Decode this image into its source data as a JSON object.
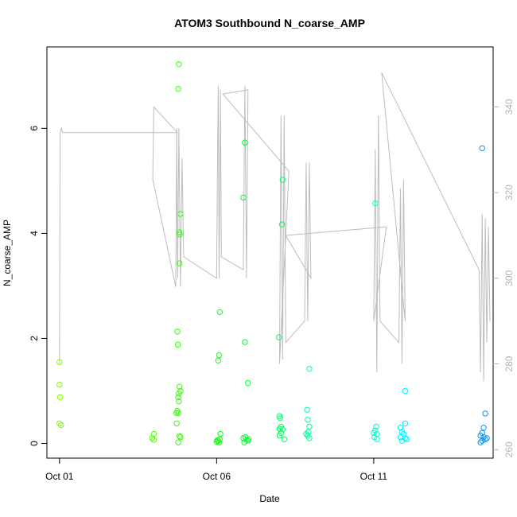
{
  "chart_data": {
    "type": "scatter",
    "title": "ATOM3 Southbound N_coarse_AMP",
    "xlabel": "Date",
    "ylabel": "N_coarse_AMP",
    "xlim": [
      -0.4,
      13.8
    ],
    "ylim": [
      -0.28,
      7.55
    ],
    "x_ticks": [
      {
        "label": "Oct 01",
        "value": 0
      },
      {
        "label": "Oct 06",
        "value": 5
      },
      {
        "label": "Oct 11",
        "value": 10
      }
    ],
    "y_ticks": [
      0,
      2,
      4,
      6
    ],
    "y2_lim": [
      258,
      354
    ],
    "y2_ticks": [
      260,
      280,
      300,
      320,
      340
    ],
    "grid": false,
    "line_color": "#bdbdbd",
    "series": [
      {
        "values": [
          [
            0.0,
            1.55,
            "#7fff00"
          ],
          [
            0.0,
            1.12,
            "#7fff00"
          ],
          [
            0.02,
            0.88,
            "#7fff00"
          ],
          [
            0.0,
            0.38,
            "#7fff00"
          ],
          [
            0.05,
            0.35,
            "#7fff00"
          ],
          [
            3.0,
            0.18,
            "#55ff00"
          ],
          [
            2.95,
            0.1,
            "#55ff00"
          ],
          [
            3.0,
            0.07,
            "#55ff00"
          ],
          [
            3.8,
            7.22,
            "#33ff00"
          ],
          [
            3.78,
            6.75,
            "#33ff00"
          ],
          [
            3.85,
            4.37,
            "#33ff00"
          ],
          [
            3.82,
            4.02,
            "#33ff00"
          ],
          [
            3.83,
            3.98,
            "#33ff00"
          ],
          [
            3.82,
            3.43,
            "#33ff00"
          ],
          [
            3.75,
            2.13,
            "#33ff00"
          ],
          [
            3.77,
            1.88,
            "#33ff00"
          ],
          [
            3.82,
            1.08,
            "#33ff00"
          ],
          [
            3.85,
            1.0,
            "#33ff00"
          ],
          [
            3.8,
            0.95,
            "#33ff00"
          ],
          [
            3.78,
            0.88,
            "#33ff00"
          ],
          [
            3.8,
            0.8,
            "#33ff00"
          ],
          [
            3.75,
            0.62,
            "#33ff00"
          ],
          [
            3.72,
            0.58,
            "#33ff00"
          ],
          [
            3.78,
            0.58,
            "#33ff00"
          ],
          [
            3.73,
            0.38,
            "#33ff00"
          ],
          [
            3.82,
            0.14,
            "#33ff00"
          ],
          [
            3.85,
            0.12,
            "#33ff00"
          ],
          [
            3.78,
            0.02,
            "#33ff00"
          ],
          [
            5.1,
            2.5,
            "#11ff11"
          ],
          [
            5.08,
            1.68,
            "#11ff11"
          ],
          [
            5.05,
            1.58,
            "#11ff11"
          ],
          [
            5.12,
            0.18,
            "#11ff11"
          ],
          [
            5.1,
            0.08,
            "#11ff11"
          ],
          [
            5.05,
            0.05,
            "#11ff11"
          ],
          [
            5.0,
            0.03,
            "#11ff11"
          ],
          [
            5.08,
            0.02,
            "#11ff11"
          ],
          [
            5.02,
            0.06,
            "#11ff11"
          ],
          [
            5.9,
            5.73,
            "#00ff30"
          ],
          [
            5.85,
            4.68,
            "#00ff30"
          ],
          [
            5.9,
            1.93,
            "#00ff30"
          ],
          [
            6.0,
            1.15,
            "#00ff30"
          ],
          [
            5.85,
            0.1,
            "#00ff30"
          ],
          [
            5.95,
            0.07,
            "#00ff30"
          ],
          [
            6.0,
            0.05,
            "#00ff30"
          ],
          [
            5.88,
            0.02,
            "#00ff30"
          ],
          [
            5.92,
            0.12,
            "#00ff30"
          ],
          [
            6.02,
            0.08,
            "#00ff30"
          ],
          [
            7.1,
            5.02,
            "#00ff66"
          ],
          [
            7.08,
            4.17,
            "#00ff66"
          ],
          [
            6.98,
            2.02,
            "#00ff66"
          ],
          [
            7.0,
            0.52,
            "#00ff66"
          ],
          [
            7.02,
            0.48,
            "#00ff66"
          ],
          [
            7.05,
            0.32,
            "#00ff66"
          ],
          [
            7.0,
            0.28,
            "#00ff66"
          ],
          [
            7.1,
            0.27,
            "#00ff66"
          ],
          [
            7.05,
            0.2,
            "#00ff66"
          ],
          [
            7.0,
            0.15,
            "#00ff66"
          ],
          [
            7.15,
            0.08,
            "#00ff66"
          ],
          [
            7.95,
            1.42,
            "#00ff99"
          ],
          [
            7.88,
            0.64,
            "#00ff99"
          ],
          [
            7.9,
            0.45,
            "#00ff99"
          ],
          [
            7.95,
            0.32,
            "#00ff99"
          ],
          [
            7.92,
            0.22,
            "#00ff99"
          ],
          [
            7.85,
            0.18,
            "#00ff99"
          ],
          [
            7.9,
            0.15,
            "#00ff99"
          ],
          [
            7.95,
            0.1,
            "#00ff99"
          ],
          [
            10.05,
            4.57,
            "#00ffcc"
          ],
          [
            10.08,
            0.32,
            "#00ffcc"
          ],
          [
            10.05,
            0.25,
            "#00ffcc"
          ],
          [
            10.0,
            0.2,
            "#00ffcc"
          ],
          [
            10.1,
            0.18,
            "#00ffcc"
          ],
          [
            10.02,
            0.12,
            "#00ffcc"
          ],
          [
            10.1,
            0.08,
            "#00ffcc"
          ],
          [
            11.0,
            1.0,
            "#00eeff"
          ],
          [
            10.85,
            0.3,
            "#00eeff"
          ],
          [
            11.0,
            0.38,
            "#00eeff"
          ],
          [
            10.9,
            0.22,
            "#00eeff"
          ],
          [
            10.95,
            0.18,
            "#00eeff"
          ],
          [
            10.85,
            0.12,
            "#00eeff"
          ],
          [
            11.0,
            0.1,
            "#00eeff"
          ],
          [
            10.9,
            0.05,
            "#00eeff"
          ],
          [
            11.05,
            0.08,
            "#00eeff"
          ],
          [
            13.45,
            5.62,
            "#0099ff"
          ],
          [
            13.55,
            0.57,
            "#0099ff"
          ],
          [
            13.5,
            0.3,
            "#0099ff"
          ],
          [
            13.45,
            0.2,
            "#0099ff"
          ],
          [
            13.4,
            0.15,
            "#0099ff"
          ],
          [
            13.5,
            0.12,
            "#0099ff"
          ],
          [
            13.55,
            0.08,
            "#0099ff"
          ],
          [
            13.45,
            0.05,
            "#0099ff"
          ],
          [
            13.4,
            0.02,
            "#0099ff"
          ],
          [
            13.6,
            0.1,
            "#0099ff"
          ]
        ]
      }
    ],
    "secondary_line": {
      "axis": "right",
      "color": "#bdbdbd",
      "points": [
        [
          0.0,
          280
        ],
        [
          0.02,
          334
        ],
        [
          0.06,
          335
        ],
        [
          0.1,
          334
        ],
        [
          3.75,
          334
        ],
        [
          3.0,
          340
        ],
        [
          2.97,
          323
        ],
        [
          3.7,
          298
        ],
        [
          3.73,
          335
        ],
        [
          3.76,
          300
        ],
        [
          3.8,
          335
        ],
        [
          3.85,
          298
        ],
        [
          3.9,
          328
        ],
        [
          3.95,
          305
        ],
        [
          5.0,
          300
        ],
        [
          5.05,
          345
        ],
        [
          5.08,
          300
        ],
        [
          5.12,
          344
        ],
        [
          5.15,
          305
        ],
        [
          5.85,
          302
        ],
        [
          5.9,
          345
        ],
        [
          5.95,
          300
        ],
        [
          6.0,
          344
        ],
        [
          5.2,
          343
        ],
        [
          7.3,
          325
        ],
        [
          7.0,
          280
        ],
        [
          7.05,
          338
        ],
        [
          7.1,
          281
        ],
        [
          7.15,
          338
        ],
        [
          7.2,
          285
        ],
        [
          7.8,
          290
        ],
        [
          7.85,
          327
        ],
        [
          7.9,
          290
        ],
        [
          7.95,
          327
        ],
        [
          8.0,
          300
        ],
        [
          7.2,
          310
        ],
        [
          10.4,
          312
        ],
        [
          10.0,
          290
        ],
        [
          10.05,
          330
        ],
        [
          10.1,
          278
        ],
        [
          10.15,
          338
        ],
        [
          10.2,
          290
        ],
        [
          10.8,
          285
        ],
        [
          10.85,
          321
        ],
        [
          10.9,
          280
        ],
        [
          10.95,
          323
        ],
        [
          11.0,
          290
        ],
        [
          10.25,
          348
        ],
        [
          13.35,
          302
        ],
        [
          13.4,
          278
        ],
        [
          13.45,
          315
        ],
        [
          13.5,
          276
        ],
        [
          13.55,
          314
        ],
        [
          13.6,
          285
        ],
        [
          13.65,
          312
        ],
        [
          13.7,
          290
        ]
      ]
    }
  }
}
